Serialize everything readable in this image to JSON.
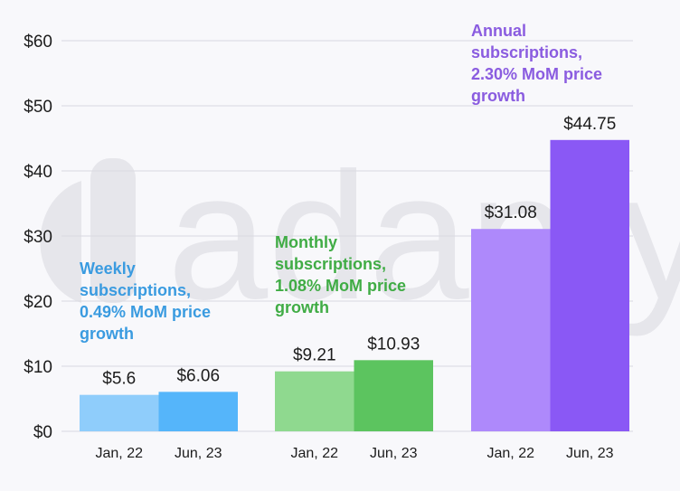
{
  "chart_data": {
    "type": "bar",
    "title": "",
    "xlabel": "",
    "ylabel": "",
    "ylim": [
      0,
      60
    ],
    "yticks": [
      0,
      10,
      20,
      30,
      40,
      50,
      60
    ],
    "ytick_labels": [
      "$0",
      "$10",
      "$20",
      "$30",
      "$40",
      "$50",
      "$60"
    ],
    "grid": true,
    "watermark": "adapty",
    "groups": [
      {
        "name": "Weekly",
        "annotation": [
          "Weekly",
          "subscriptions,",
          "0.49% MoM price",
          "growth"
        ],
        "annotation_color": "#3a9be0",
        "categories": [
          "Jan, 22",
          "Jun, 23"
        ],
        "values": [
          5.6,
          6.06
        ],
        "value_labels": [
          "$5.6",
          "$6.06"
        ],
        "colors": [
          "#8fcdfb",
          "#55b5fa"
        ]
      },
      {
        "name": "Monthly",
        "annotation": [
          "Monthly",
          "subscriptions,",
          "1.08% MoM price",
          "growth"
        ],
        "annotation_color": "#40ac45",
        "categories": [
          "Jan, 22",
          "Jun, 23"
        ],
        "values": [
          9.21,
          10.93
        ],
        "value_labels": [
          "$9.21",
          "$10.93"
        ],
        "colors": [
          "#8fd98f",
          "#5cc45f"
        ]
      },
      {
        "name": "Annual",
        "annotation": [
          "Annual",
          "subscriptions,",
          "2.30% MoM price",
          "growth"
        ],
        "annotation_color": "#8a5ce0",
        "categories": [
          "Jan, 22",
          "Jun, 23"
        ],
        "values": [
          31.08,
          44.75
        ],
        "value_labels": [
          "$31.08",
          "$44.75"
        ],
        "colors": [
          "#ae89fb",
          "#8a58f5"
        ]
      }
    ]
  }
}
